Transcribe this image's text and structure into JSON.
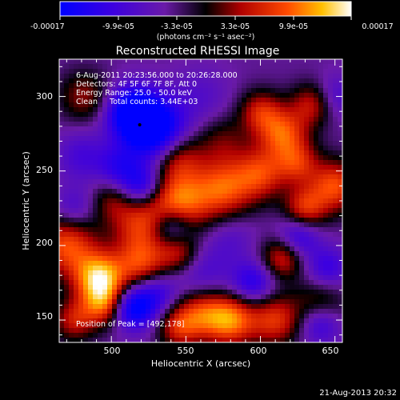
{
  "colorbar": {
    "tick_labels": [
      "-0.00017",
      "-9.9e-05",
      "-3.3e-05",
      "3.3e-05",
      "9.9e-05",
      "0.00017"
    ],
    "units": "(photons cm⁻² s⁻¹ asec⁻²)",
    "colors": [
      "#0000ff",
      "#5a00c8",
      "#000000",
      "#b40000",
      "#ff5a00",
      "#ffd000",
      "#ffffff"
    ]
  },
  "plot": {
    "title": "Reconstructed RHESSI Image",
    "xlabel": "Heliocentric X (arcsec)",
    "ylabel": "Heliocentric Y (arcsec)",
    "x_ticks": [
      "500",
      "550",
      "600",
      "650"
    ],
    "y_ticks": [
      "150",
      "200",
      "250",
      "300"
    ],
    "annotations": {
      "time_range": "6-Aug-2011 20:23:56.000 to 20:26:28.000",
      "detectors": "Detectors: 4F 5F 6F 7F 8F, Att 0",
      "energy": "Energy Range: 25.0 - 50.0 keV",
      "algorithm": "Clean     Total counts: 3.44E+03",
      "peak": "Position of Peak = [492,178]"
    }
  },
  "footer": {
    "timestamp": "21-Aug-2013 20:32"
  },
  "chart_data": {
    "type": "heatmap",
    "title": "Reconstructed RHESSI Image",
    "xlabel": "Heliocentric X (arcsec)",
    "ylabel": "Heliocentric Y (arcsec)",
    "xlim": [
      465,
      655
    ],
    "ylim": [
      135,
      325
    ],
    "colorbar_range": [
      -0.00017,
      0.00017
    ],
    "peak_position": [
      492,
      178
    ],
    "grid": false,
    "blobs": [
      {
        "x": 528,
        "y": 278,
        "v": -1.0,
        "s": 14
      },
      {
        "x": 514,
        "y": 290,
        "v": -0.8,
        "s": 12
      },
      {
        "x": 545,
        "y": 258,
        "v": 0.5,
        "s": 12
      },
      {
        "x": 520,
        "y": 240,
        "v": -0.6,
        "s": 10
      },
      {
        "x": 505,
        "y": 253,
        "v": -0.4,
        "s": 10
      },
      {
        "x": 480,
        "y": 260,
        "v": -0.3,
        "s": 12
      },
      {
        "x": 482,
        "y": 300,
        "v": 0.4,
        "s": 12
      },
      {
        "x": 470,
        "y": 200,
        "v": 0.7,
        "s": 14
      },
      {
        "x": 492,
        "y": 178,
        "v": 1.0,
        "s": 12
      },
      {
        "x": 495,
        "y": 160,
        "v": 0.6,
        "s": 10
      },
      {
        "x": 475,
        "y": 150,
        "v": 0.5,
        "s": 10
      },
      {
        "x": 520,
        "y": 215,
        "v": 0.6,
        "s": 14
      },
      {
        "x": 545,
        "y": 228,
        "v": 0.8,
        "s": 14
      },
      {
        "x": 575,
        "y": 238,
        "v": 0.7,
        "s": 14
      },
      {
        "x": 600,
        "y": 248,
        "v": 0.6,
        "s": 12
      },
      {
        "x": 615,
        "y": 275,
        "v": 0.7,
        "s": 12
      },
      {
        "x": 600,
        "y": 290,
        "v": 0.5,
        "s": 10
      },
      {
        "x": 575,
        "y": 270,
        "v": 0.3,
        "s": 12
      },
      {
        "x": 635,
        "y": 295,
        "v": 0.5,
        "s": 10
      },
      {
        "x": 650,
        "y": 240,
        "v": 0.7,
        "s": 12
      },
      {
        "x": 630,
        "y": 225,
        "v": 0.6,
        "s": 10
      },
      {
        "x": 520,
        "y": 188,
        "v": 0.6,
        "s": 12
      },
      {
        "x": 545,
        "y": 195,
        "v": 0.5,
        "s": 10
      },
      {
        "x": 540,
        "y": 213,
        "v": -0.6,
        "s": 10
      },
      {
        "x": 530,
        "y": 168,
        "v": -0.4,
        "s": 10
      },
      {
        "x": 515,
        "y": 158,
        "v": -0.8,
        "s": 10
      },
      {
        "x": 560,
        "y": 155,
        "v": 0.6,
        "s": 12
      },
      {
        "x": 545,
        "y": 145,
        "v": 0.5,
        "s": 10
      },
      {
        "x": 580,
        "y": 150,
        "v": 0.8,
        "s": 12
      },
      {
        "x": 610,
        "y": 150,
        "v": 0.6,
        "s": 12
      },
      {
        "x": 640,
        "y": 160,
        "v": 0.4,
        "s": 12
      },
      {
        "x": 560,
        "y": 180,
        "v": -0.3,
        "s": 14
      },
      {
        "x": 595,
        "y": 175,
        "v": -0.5,
        "s": 10
      },
      {
        "x": 615,
        "y": 192,
        "v": 0.6,
        "s": 10
      },
      {
        "x": 625,
        "y": 205,
        "v": -0.5,
        "s": 10
      },
      {
        "x": 645,
        "y": 185,
        "v": -0.4,
        "s": 10
      },
      {
        "x": 640,
        "y": 148,
        "v": -0.5,
        "s": 10
      },
      {
        "x": 580,
        "y": 205,
        "v": -0.2,
        "s": 12
      },
      {
        "x": 500,
        "y": 230,
        "v": 0.3,
        "s": 10
      },
      {
        "x": 560,
        "y": 300,
        "v": -0.2,
        "s": 14
      },
      {
        "x": 625,
        "y": 255,
        "v": 0.5,
        "s": 10
      },
      {
        "x": 475,
        "y": 225,
        "v": -0.3,
        "s": 10
      },
      {
        "x": 650,
        "y": 300,
        "v": -0.3,
        "s": 10
      }
    ]
  }
}
